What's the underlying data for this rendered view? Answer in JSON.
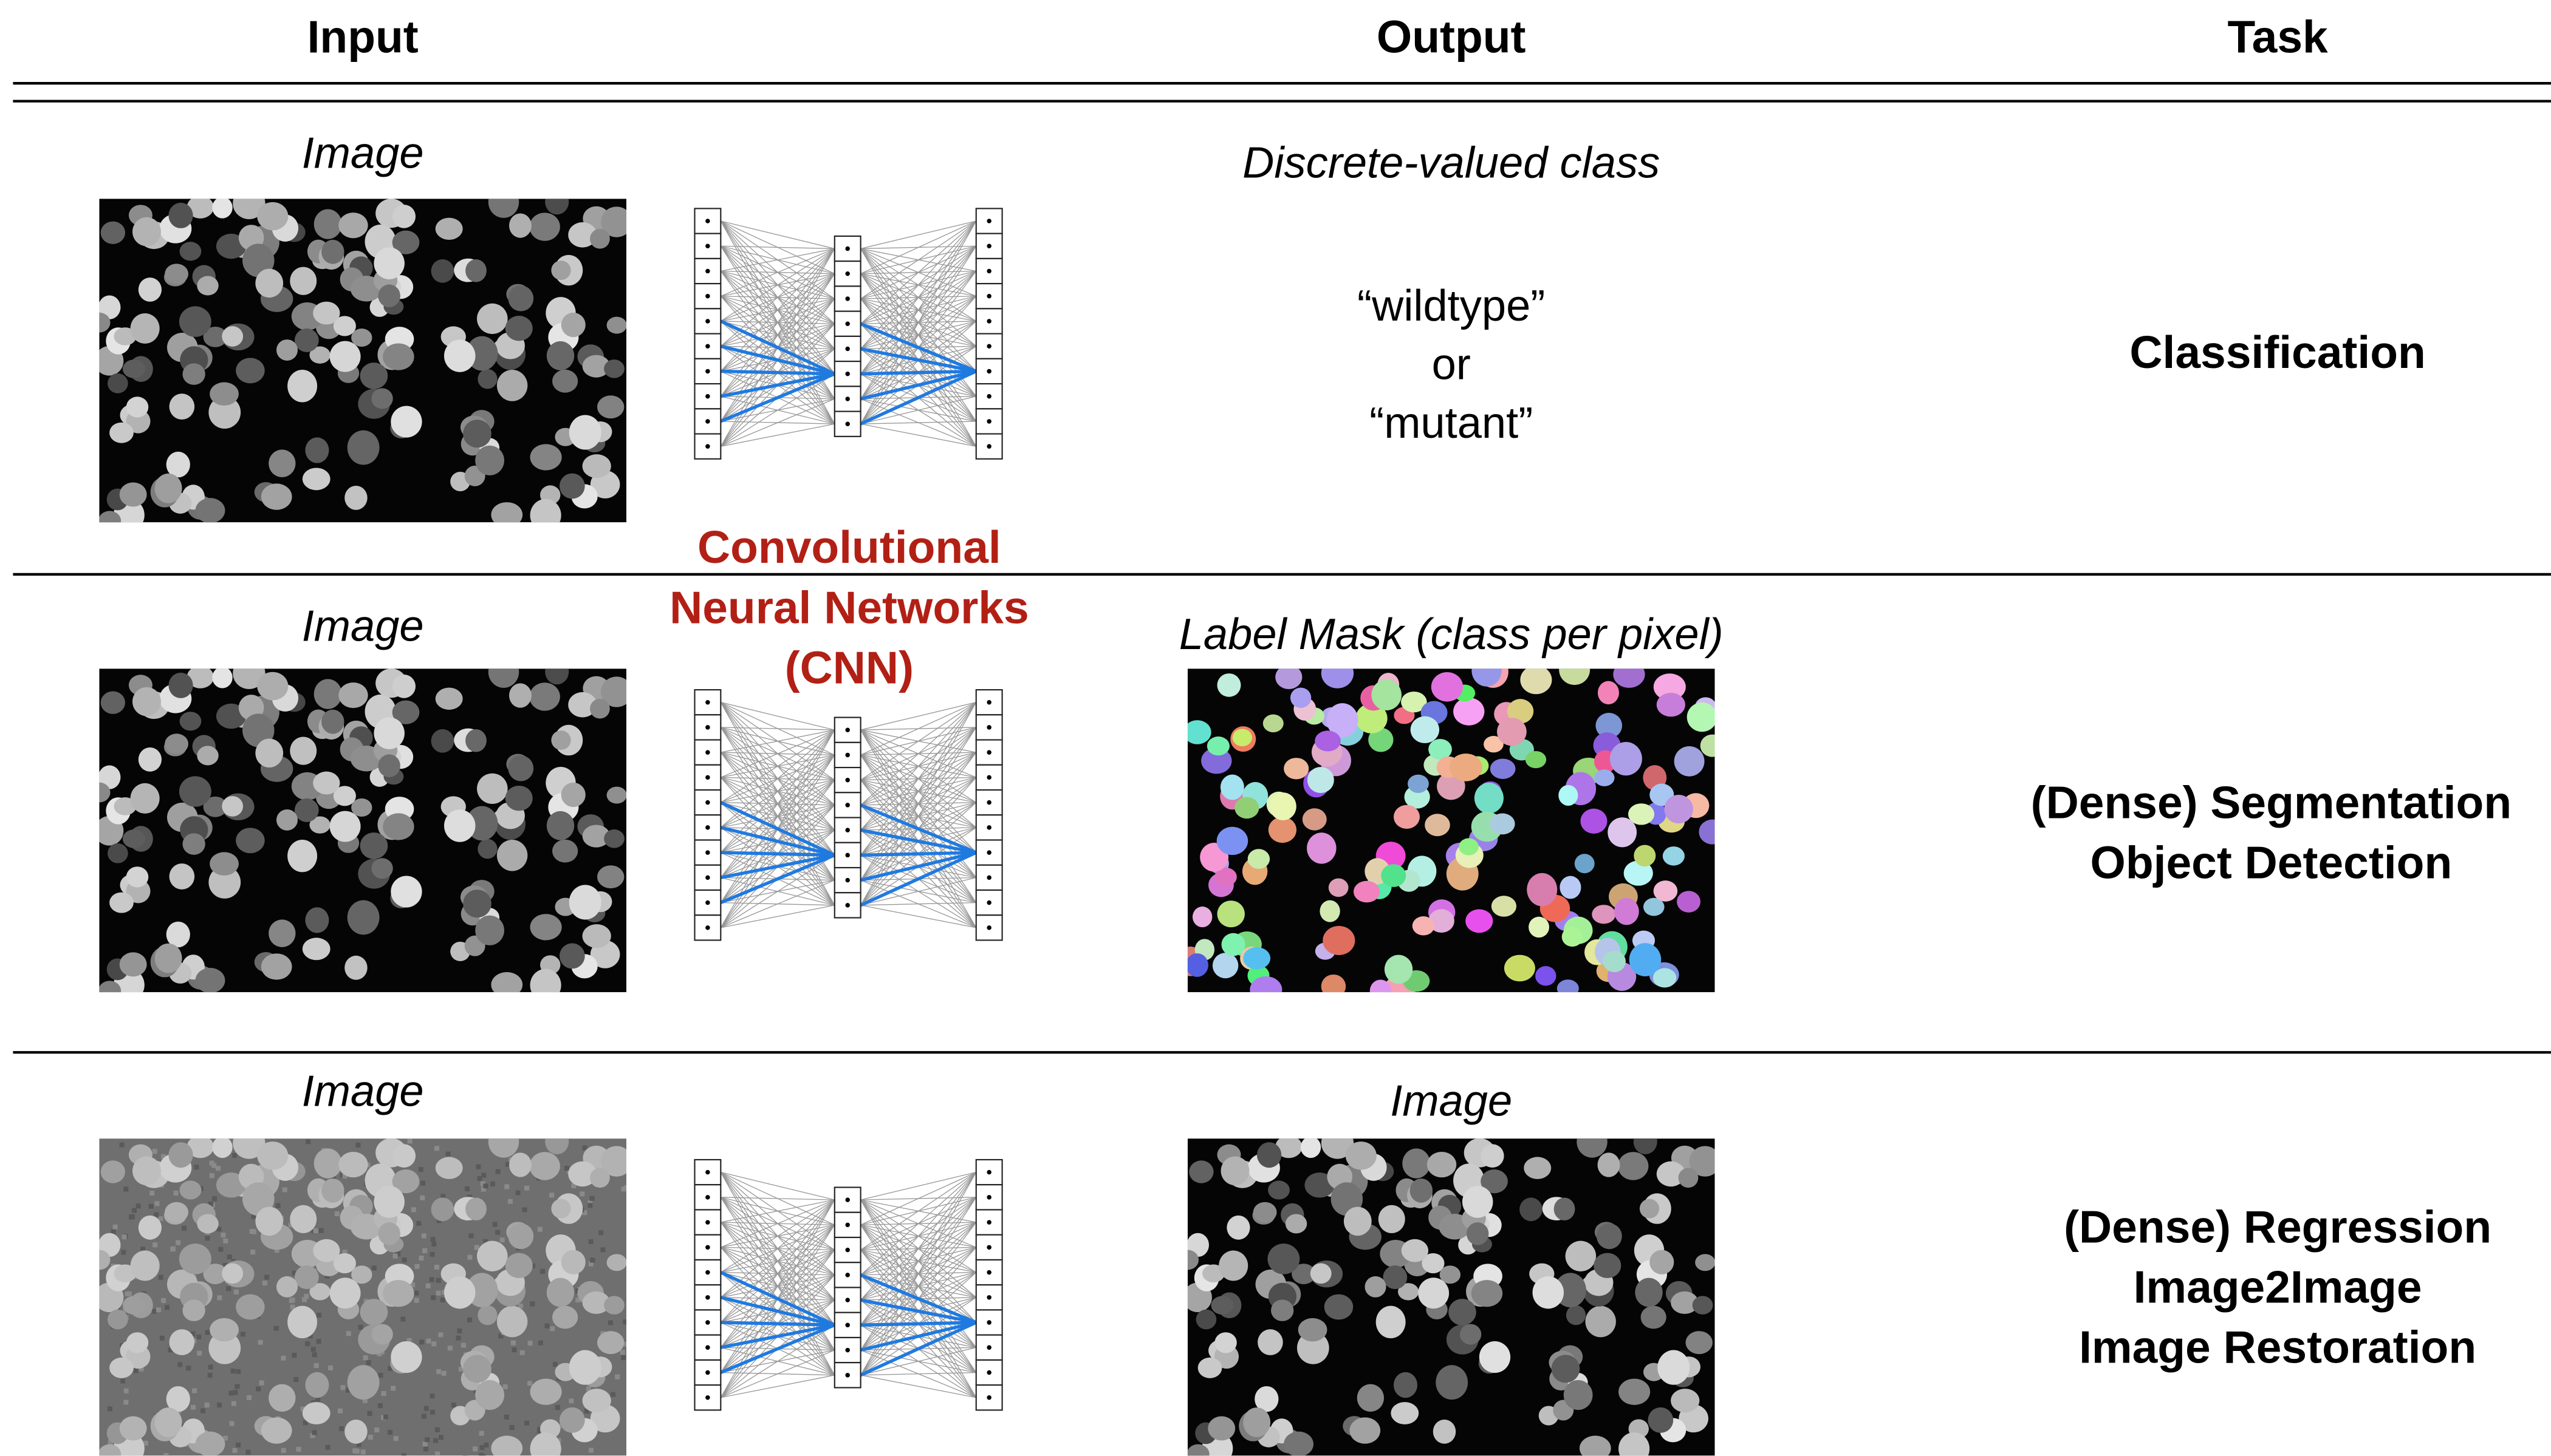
{
  "header": {
    "columns": [
      "Input",
      "Output",
      "Task"
    ]
  },
  "network_label": [
    "Convolutional",
    "Neural Networks",
    "(CNN)"
  ],
  "rows": [
    {
      "input_label": "Image",
      "output_label": "Discrete-valued class",
      "output_text": [
        "“wildtype”",
        "or",
        "“mutant”"
      ],
      "task": [
        "Classification"
      ]
    },
    {
      "input_label": "Image",
      "output_label": "Label Mask (class per pixel)",
      "task": [
        "(Dense) Segmentation",
        "Object Detection"
      ]
    },
    {
      "input_label": "Image",
      "output_label": "Image",
      "task": [
        "(Dense) Regression",
        "Image2Image",
        "Image Restoration"
      ]
    }
  ]
}
